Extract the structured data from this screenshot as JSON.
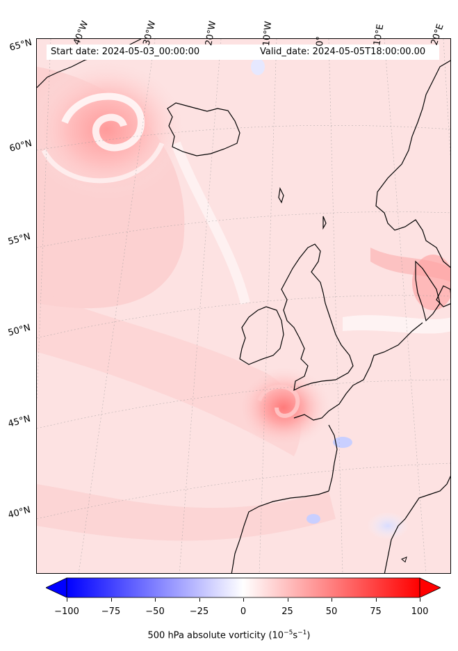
{
  "header": {
    "start_date": "Start date: 2024-05-03_00:00:00",
    "valid_date": "Valid_date: 2024-05-05T18:00:00.00"
  },
  "longitude_labels": [
    "40°W",
    "30°W",
    "20°W",
    "10°W",
    "0°",
    "10°E",
    "20°E"
  ],
  "latitude_labels": [
    "65°N",
    "60°N",
    "55°N",
    "50°N",
    "45°N",
    "40°N"
  ],
  "colorbar": {
    "min": -100,
    "max": 100,
    "tick_labels": [
      "−100",
      "−75",
      "−50",
      "−25",
      "0",
      "25",
      "50",
      "75",
      "100"
    ],
    "title_main": "500 hPa absolute vorticity (10",
    "title_exp1": "−5",
    "title_mid": "s",
    "title_exp2": "−1",
    "title_end": ")",
    "colors": {
      "negative": "#0000ff",
      "zero": "#ffffff",
      "positive": "#ff0000"
    },
    "extend": "both"
  },
  "map": {
    "field": "500 hPa absolute vorticity",
    "background_color": "#fde0e0",
    "coastline_color": "#000000",
    "gridlines": true,
    "features": [
      "low-pressure swirl south of Greenland",
      "vorticity maximum west of Brittany",
      "Iceland",
      "British Isles",
      "Scandinavia",
      "Iberian Peninsula"
    ]
  }
}
